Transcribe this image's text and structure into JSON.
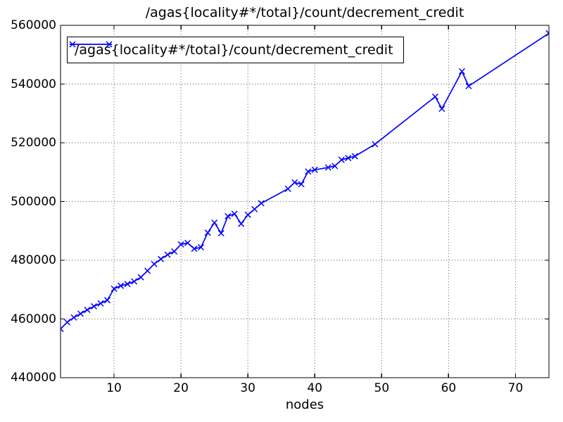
{
  "figure": {
    "background": "#ffffff",
    "axes_facecolor": "#ffffff",
    "spine_color": "#000000",
    "grid_color": "#777777",
    "tick_color": "#000000"
  },
  "chart_data": {
    "type": "line",
    "title": "/agas{locality#*/total}/count/decrement_credit",
    "xlabel": "nodes",
    "ylabel": "",
    "xlim": [
      2,
      75
    ],
    "ylim": [
      440000,
      560000
    ],
    "x_ticks": [
      10,
      20,
      30,
      40,
      50,
      60,
      70
    ],
    "y_ticks": [
      440000,
      460000,
      480000,
      500000,
      520000,
      540000,
      560000
    ],
    "grid": true,
    "grid_linestyle": "dotted",
    "legend": {
      "position": "upper-left",
      "entries": [
        {
          "label": "/agas{locality#*/total}/count/decrement_credit",
          "color": "#0000ff",
          "marker": "x"
        }
      ]
    },
    "series": [
      {
        "name": "/agas{locality#*/total}/count/decrement_credit",
        "color": "#0000ff",
        "marker": "x",
        "x": [
          2,
          3,
          4,
          5,
          6,
          7,
          8,
          9,
          10,
          11,
          12,
          13,
          14,
          15,
          16,
          17,
          18,
          19,
          20,
          21,
          22,
          23,
          24,
          25,
          26,
          27,
          28,
          29,
          30,
          31,
          32,
          36,
          37,
          38,
          39,
          40,
          42,
          43,
          44,
          45,
          46,
          49,
          58,
          59,
          62,
          63,
          75
        ],
        "y": [
          456600,
          458900,
          460500,
          461800,
          463100,
          464300,
          465300,
          466400,
          470300,
          471300,
          471900,
          472800,
          474200,
          476400,
          478700,
          480400,
          481900,
          483000,
          485400,
          485900,
          483900,
          484400,
          489400,
          492800,
          489200,
          495000,
          495800,
          492400,
          495500,
          497400,
          499400,
          504300,
          506500,
          505900,
          510200,
          510800,
          511600,
          512100,
          514200,
          514800,
          515400,
          519500,
          535700,
          531600,
          544300,
          539300,
          557300
        ]
      }
    ]
  }
}
